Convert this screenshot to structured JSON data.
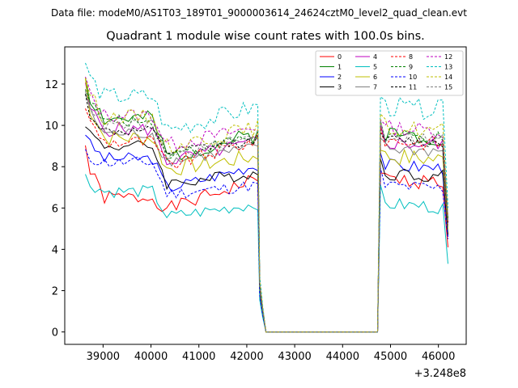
{
  "chart_data": {
    "type": "line",
    "suptitle": "Data file: modeM0/AS1T03_189T01_9000003614_24624cztM0_level2_quad_clean.evt",
    "title": "Quadrant 1 module wise count rates with 100.0s bins.",
    "xlabel": "",
    "ylabel": "",
    "x_offset_label": "+3.248e8",
    "xlim": [
      38200,
      46580
    ],
    "ylim": [
      -0.6,
      13.8
    ],
    "x_ticks": [
      39000,
      40000,
      41000,
      42000,
      43000,
      44000,
      45000,
      46000
    ],
    "x_tick_labels": [
      "39000",
      "40000",
      "41000",
      "42000",
      "43000",
      "44000",
      "45000",
      "46000"
    ],
    "y_ticks": [
      0,
      2,
      4,
      6,
      8,
      10,
      12
    ],
    "y_tick_labels": [
      "0",
      "2",
      "4",
      "6",
      "8",
      "10",
      "12"
    ],
    "legend_position": "upper right",
    "segments": [
      {
        "start": 38630,
        "n": 37,
        "step": 100
      },
      {
        "start": 42330,
        "n": 25,
        "step": 100
      },
      {
        "start": 44730,
        "n": 15,
        "step": 100
      }
    ],
    "series": [
      {
        "name": "0",
        "color": "#ff0000",
        "dash": false,
        "first": 9.0,
        "base": 6.5,
        "low": 6.0,
        "lvl2": 7.4,
        "tail": 4.1,
        "amp": 0.35,
        "seed": 1
      },
      {
        "name": "1",
        "color": "#008000",
        "dash": false,
        "first": 12.4,
        "base": 10.3,
        "low": 8.5,
        "lvl2": 9.6,
        "tail": 5.5,
        "amp": 0.4,
        "seed": 2
      },
      {
        "name": "2",
        "color": "#0000ff",
        "dash": false,
        "first": 9.7,
        "base": 8.4,
        "low": 7.0,
        "lvl2": 8.1,
        "tail": 4.6,
        "amp": 0.3,
        "seed": 3
      },
      {
        "name": "3",
        "color": "#000000",
        "dash": false,
        "first": 10.2,
        "base": 9.0,
        "low": 7.2,
        "lvl2": 7.7,
        "tail": 4.7,
        "amp": 0.3,
        "seed": 4
      },
      {
        "name": "4",
        "color": "#bf00bf",
        "dash": false,
        "first": 11.8,
        "base": 9.8,
        "low": 8.3,
        "lvl2": 9.2,
        "tail": 5.3,
        "amp": 0.35,
        "seed": 5
      },
      {
        "name": "5",
        "color": "#00bfbf",
        "dash": false,
        "first": 7.5,
        "base": 6.8,
        "low": 5.6,
        "lvl2": 6.2,
        "tail": 3.3,
        "amp": 0.3,
        "seed": 6
      },
      {
        "name": "6",
        "color": "#bfbf00",
        "dash": false,
        "first": 12.2,
        "base": 9.4,
        "low": 7.9,
        "lvl2": 8.5,
        "tail": 5.0,
        "amp": 0.4,
        "seed": 7
      },
      {
        "name": "7",
        "color": "#808080",
        "dash": false,
        "first": 11.6,
        "base": 9.6,
        "low": 8.3,
        "lvl2": 8.9,
        "tail": 5.1,
        "amp": 0.3,
        "seed": 8
      },
      {
        "name": "8",
        "color": "#ff0000",
        "dash": true,
        "first": 11.0,
        "base": 9.2,
        "low": 8.1,
        "lvl2": 9.3,
        "tail": 5.2,
        "amp": 0.35,
        "seed": 9
      },
      {
        "name": "9",
        "color": "#008000",
        "dash": true,
        "first": 12.0,
        "base": 10.2,
        "low": 8.6,
        "lvl2": 9.5,
        "tail": 5.4,
        "amp": 0.3,
        "seed": 10
      },
      {
        "name": "10",
        "color": "#0000ff",
        "dash": true,
        "first": 8.6,
        "base": 8.2,
        "low": 6.7,
        "lvl2": 7.1,
        "tail": 4.5,
        "amp": 0.3,
        "seed": 11
      },
      {
        "name": "11",
        "color": "#000000",
        "dash": true,
        "first": 11.4,
        "base": 9.7,
        "low": 8.7,
        "lvl2": 9.3,
        "tail": 5.3,
        "amp": 0.25,
        "seed": 12
      },
      {
        "name": "12",
        "color": "#bf00bf",
        "dash": true,
        "first": 12.3,
        "base": 10.5,
        "low": 9.1,
        "lvl2": 9.9,
        "tail": 5.6,
        "amp": 0.35,
        "seed": 13
      },
      {
        "name": "13",
        "color": "#00bfbf",
        "dash": true,
        "first": 13.1,
        "base": 11.4,
        "low": 9.8,
        "lvl2": 10.9,
        "tail": 6.0,
        "amp": 0.45,
        "seed": 14
      },
      {
        "name": "14",
        "color": "#bfbf00",
        "dash": true,
        "first": 12.5,
        "base": 10.4,
        "low": 9.0,
        "lvl2": 9.9,
        "tail": 5.6,
        "amp": 0.4,
        "seed": 15
      },
      {
        "name": "15",
        "color": "#808080",
        "dash": true,
        "first": 11.9,
        "base": 10.0,
        "low": 8.5,
        "lvl2": 9.5,
        "tail": 5.4,
        "amp": 0.3,
        "seed": 16
      }
    ]
  }
}
